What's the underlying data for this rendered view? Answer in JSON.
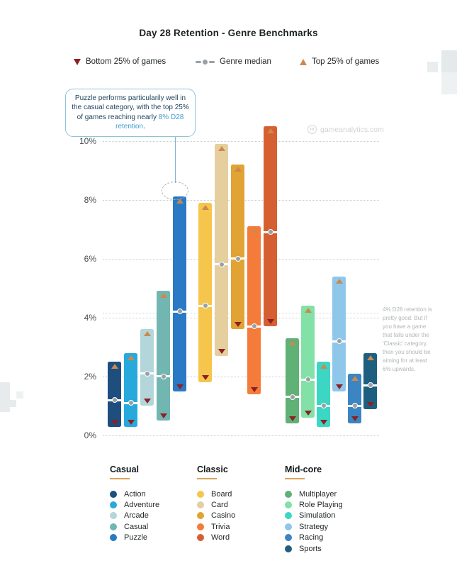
{
  "title": "Day 28 Retention - Genre Benchmarks",
  "legend_markers": {
    "bottom": {
      "label": "Bottom 25% of games",
      "color": "#8c2022"
    },
    "median": {
      "label": "Genre median",
      "color": "#9aa0a4"
    },
    "top": {
      "label": "Top 25% of games",
      "color": "#cb8a4d"
    }
  },
  "callout": {
    "text": "Puzzle performs particularily well in the casual category, with the top 25% of games reaching nearly ",
    "highlight": "8% D28 retention",
    "suffix": ".",
    "highlight_color": "#3f9fd0"
  },
  "side_note": "4% D28 retention is pretty good. But if you have a game that falls under the 'Classic' category, then you should be aiming for at least 6% upwards.",
  "watermark": "gameanalytics.com",
  "chart_data": {
    "type": "floating-bar",
    "title": "Day 28 Retention - Genre Benchmarks",
    "unit": "%",
    "ylim": [
      0,
      10.8
    ],
    "yticks": [
      0,
      2,
      4,
      6,
      8,
      10
    ],
    "ytick_labels": [
      "0%",
      "2%",
      "4%",
      "6%",
      "8%",
      "10%"
    ],
    "grid": "dotted-horizontal",
    "marker_semantics": {
      "bar_bottom": "Bottom 25% of games",
      "median_dot": "Genre median",
      "bar_top": "Top 25% of games"
    },
    "groups": [
      {
        "name": "Casual",
        "series": [
          {
            "label": "Action",
            "color": "#1d4e7e",
            "bottom": 0.3,
            "median": 1.2,
            "top": 2.5
          },
          {
            "label": "Adventure",
            "color": "#27a9dc",
            "bottom": 0.3,
            "median": 1.1,
            "top": 2.8
          },
          {
            "label": "Arcade",
            "color": "#b2d6da",
            "bottom": 1.0,
            "median": 2.1,
            "top": 3.6
          },
          {
            "label": "Casual",
            "color": "#72b6b1",
            "bottom": 0.5,
            "median": 2.0,
            "top": 4.9
          },
          {
            "label": "Puzzle",
            "color": "#2979c5",
            "bottom": 1.5,
            "median": 4.2,
            "top": 8.1
          }
        ]
      },
      {
        "name": "Classic",
        "series": [
          {
            "label": "Board",
            "color": "#f6c64c",
            "bottom": 1.8,
            "median": 4.4,
            "top": 7.9
          },
          {
            "label": "Card",
            "color": "#e5cf9f",
            "bottom": 2.7,
            "median": 5.8,
            "top": 9.9
          },
          {
            "label": "Casino",
            "color": "#e0a334",
            "bottom": 3.6,
            "median": 6.0,
            "top": 9.2
          },
          {
            "label": "Trivia",
            "color": "#f47b3a",
            "bottom": 1.4,
            "median": 3.7,
            "top": 7.1
          },
          {
            "label": "Word",
            "color": "#d65f31",
            "bottom": 3.7,
            "median": 6.9,
            "top": 10.5
          }
        ]
      },
      {
        "name": "Mid-core",
        "series": [
          {
            "label": "Multiplayer",
            "color": "#5fb175",
            "bottom": 0.4,
            "median": 1.3,
            "top": 3.3
          },
          {
            "label": "Role Playing",
            "color": "#81e1a6",
            "bottom": 0.6,
            "median": 1.9,
            "top": 4.4
          },
          {
            "label": "Simulation",
            "color": "#3cd6c4",
            "bottom": 0.3,
            "median": 1.0,
            "top": 2.5
          },
          {
            "label": "Strategy",
            "color": "#8fc7eb",
            "bottom": 1.5,
            "median": 3.2,
            "top": 5.4
          },
          {
            "label": "Racing",
            "color": "#3c85c3",
            "bottom": 0.4,
            "median": 1.0,
            "top": 2.1
          },
          {
            "label": "Sports",
            "color": "#1e5f7f",
            "bottom": 0.9,
            "median": 1.7,
            "top": 2.8
          }
        ]
      }
    ],
    "highlighted_point": {
      "series": "Puzzle",
      "which": "top",
      "value": 8.1
    }
  }
}
